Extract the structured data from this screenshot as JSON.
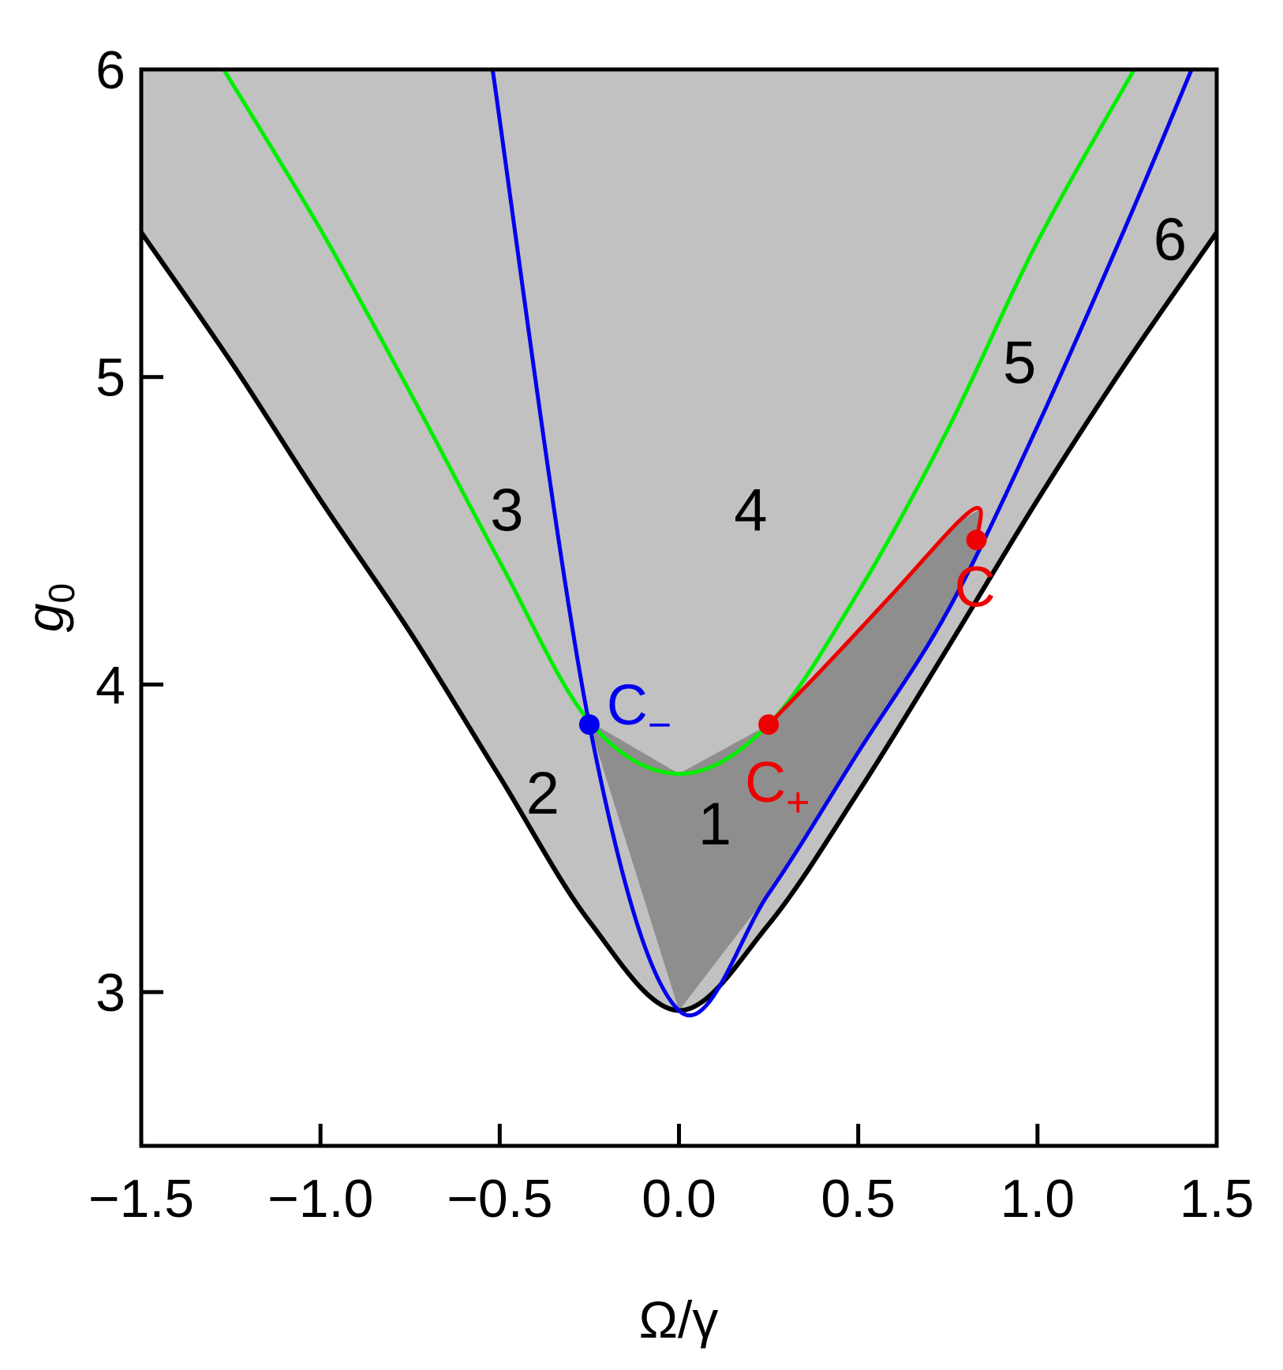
{
  "chart_data": {
    "type": "line",
    "xlabel": "Ω/γ",
    "ylabel": "g",
    "ylabel_sub": "0",
    "xlim": [
      -1.5,
      1.5
    ],
    "ylim": [
      2.5,
      6.0
    ],
    "grid": false,
    "x_ticks": [
      -1.5,
      -1.0,
      -0.5,
      0.0,
      0.5,
      1.0,
      1.5
    ],
    "x_tick_labels": [
      "−1.5",
      "−1.0",
      "−0.5",
      "0.0",
      "0.5",
      "1.0",
      "1.5"
    ],
    "y_ticks": [
      3,
      4,
      5,
      6
    ],
    "y_tick_labels": [
      "3",
      "4",
      "5",
      "6"
    ],
    "colors": {
      "region_light": "#c1c1c1",
      "region_dark": "#8e8e8e",
      "black_curve": "#000000",
      "green_curve": "#00ee00",
      "blue_curve": "#0000ee",
      "red_curve": "#ee0000"
    },
    "series": [
      {
        "color": "black",
        "x": [
          -1.5,
          -1.25,
          -1.0,
          -0.75,
          -0.5,
          -0.25,
          0.0,
          0.25,
          0.5,
          0.75,
          1.0,
          1.25,
          1.5
        ],
        "y": [
          5.47,
          5.05,
          4.6,
          4.17,
          3.7,
          3.23,
          2.94,
          3.22,
          3.65,
          4.12,
          4.6,
          5.05,
          5.47
        ]
      },
      {
        "color": "green",
        "x": [
          -1.27,
          -1.0,
          -0.75,
          -0.5,
          -0.25,
          0.0,
          0.25,
          0.5,
          0.75,
          1.0,
          1.27
        ],
        "y": [
          6.0,
          5.48,
          4.95,
          4.4,
          3.88,
          3.71,
          3.87,
          4.3,
          4.83,
          5.44,
          6.0
        ]
      },
      {
        "color": "blue",
        "x": [
          -0.52,
          -0.25,
          0.0,
          0.25,
          0.5,
          0.75,
          1.0,
          1.25,
          1.43
        ],
        "y": [
          6.0,
          3.87,
          2.94,
          3.32,
          3.78,
          4.24,
          4.84,
          5.5,
          6.0
        ]
      },
      {
        "color": "red",
        "x": [
          0.25,
          0.4,
          0.6,
          0.78,
          0.84,
          0.83
        ],
        "y": [
          3.87,
          4.05,
          4.3,
          4.53,
          4.57,
          4.47
        ]
      }
    ],
    "points": [
      {
        "id": "c-minus",
        "x": -0.25,
        "y": 3.87,
        "color": "blue",
        "label": "C",
        "sub": "−"
      },
      {
        "id": "c-plus",
        "x": 0.25,
        "y": 3.87,
        "color": "red",
        "label": "C",
        "sub": "+"
      },
      {
        "id": "c",
        "x": 0.83,
        "y": 4.47,
        "color": "red",
        "label": "C",
        "sub": ""
      }
    ],
    "region_labels": [
      {
        "text": "1",
        "x": 0.1,
        "y": 3.48
      },
      {
        "text": "2",
        "x": -0.38,
        "y": 3.58
      },
      {
        "text": "3",
        "x": -0.48,
        "y": 4.5
      },
      {
        "text": "4",
        "x": 0.2,
        "y": 4.5
      },
      {
        "text": "5",
        "x": 0.95,
        "y": 4.98
      },
      {
        "text": "6",
        "x": 1.37,
        "y": 5.38
      }
    ]
  }
}
